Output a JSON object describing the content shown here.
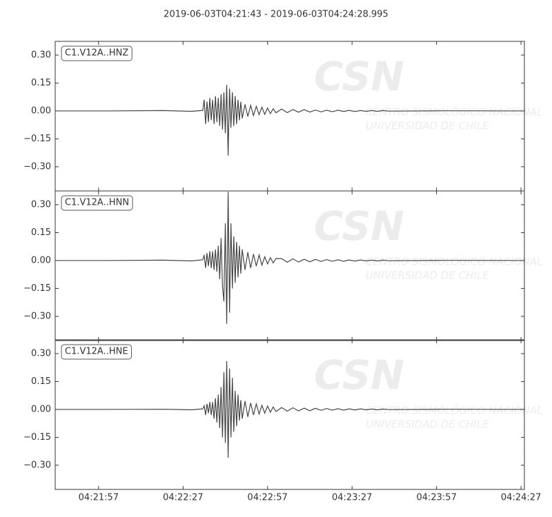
{
  "chart_data": {
    "type": "line",
    "title": "2019-06-03T04:21:43  -  2019-06-03T04:24:28.995",
    "watermark": {
      "logo": "CSN",
      "line1": "CENTRO SISMOLÓGICO NACIONAL",
      "line2": "UNIVERSIDAD DE CHILE"
    },
    "x": [
      "04:21:42",
      "04:22:00",
      "04:22:20",
      "04:22:30",
      "04:22:34",
      "04:22:34.5",
      "04:22:35",
      "04:22:35.5",
      "04:22:36",
      "04:22:36.5",
      "04:22:37",
      "04:22:37.5",
      "04:22:38",
      "04:22:38.5",
      "04:22:39",
      "04:22:39.5",
      "04:22:40",
      "04:22:40.5",
      "04:22:41",
      "04:22:41.5",
      "04:22:42",
      "04:22:42.5",
      "04:22:43",
      "04:22:43.5",
      "04:22:44",
      "04:22:44.5",
      "04:22:45",
      "04:22:45.5",
      "04:22:46",
      "04:22:46.5",
      "04:22:47",
      "04:22:47.5",
      "04:22:48",
      "04:22:49",
      "04:22:50",
      "04:22:51",
      "04:22:52",
      "04:22:53",
      "04:22:54",
      "04:22:55",
      "04:22:56",
      "04:22:57",
      "04:22:58",
      "04:22:59",
      "04:23:00",
      "04:23:02",
      "04:23:04",
      "04:23:06",
      "04:23:08",
      "04:23:10",
      "04:23:12",
      "04:23:14",
      "04:23:16",
      "04:23:18",
      "04:23:20",
      "04:23:22",
      "04:23:24",
      "04:23:26",
      "04:23:28",
      "04:23:30",
      "04:23:32",
      "04:23:34",
      "04:23:36",
      "04:23:38",
      "04:23:40",
      "04:24:00",
      "04:24:28"
    ],
    "xlim": [
      "04:21:41.6",
      "04:24:28.2"
    ],
    "xticks": [
      "04:21:57",
      "04:22:27",
      "04:22:57",
      "04:23:27",
      "04:23:57",
      "04:24:27"
    ],
    "ylim": [
      -0.43,
      0.374
    ],
    "yticks": [
      {
        "value": 0.3,
        "label": "0.30"
      },
      {
        "value": 0.15,
        "label": "0.15"
      },
      {
        "value": 0,
        "label": "0.00"
      },
      {
        "value": -0.15,
        "label": "−0.15"
      },
      {
        "value": -0.3,
        "label": "−0.30"
      }
    ],
    "series": [
      {
        "name": "C1.V12A..HNZ",
        "color": "#444444",
        "values": [
          0,
          0,
          0.002,
          -0.002,
          0.003,
          0.06,
          -0.07,
          0.05,
          -0.06,
          0.07,
          -0.05,
          0.06,
          -0.07,
          0.08,
          -0.06,
          0.07,
          -0.08,
          0.09,
          -0.1,
          0.1,
          -0.12,
          0.14,
          -0.24,
          0.12,
          -0.09,
          0.1,
          -0.08,
          0.08,
          -0.07,
          0.06,
          -0.05,
          0.05,
          -0.04,
          0.035,
          -0.03,
          0.03,
          -0.025,
          0.025,
          -0.02,
          0.02,
          -0.018,
          0.016,
          -0.014,
          0.012,
          -0.01,
          0.01,
          -0.009,
          0.008,
          -0.007,
          0.007,
          -0.006,
          0.005,
          -0.005,
          0.004,
          -0.004,
          0.004,
          -0.003,
          0.003,
          -0.003,
          0.002,
          -0.002,
          0.002,
          -0.002,
          0.002,
          -0.001,
          0.001,
          0
        ]
      },
      {
        "name": "C1.V12A..HNN",
        "color": "#444444",
        "values": [
          0,
          0,
          0.002,
          -0.002,
          0.004,
          0.03,
          -0.04,
          0.04,
          -0.03,
          0.05,
          -0.04,
          0.05,
          -0.05,
          0.06,
          -0.06,
          0.08,
          -0.1,
          0.12,
          -0.14,
          -0.22,
          0.2,
          -0.34,
          0.37,
          -0.28,
          0.2,
          -0.15,
          0.13,
          -0.12,
          0.1,
          -0.09,
          0.08,
          -0.07,
          0.06,
          -0.05,
          0.045,
          -0.04,
          0.035,
          -0.03,
          0.03,
          -0.025,
          0.02,
          -0.018,
          0.015,
          -0.013,
          0.011,
          0.01,
          -0.009,
          0.009,
          -0.008,
          0.007,
          -0.007,
          0.006,
          -0.005,
          0.005,
          -0.004,
          0.004,
          -0.004,
          0.003,
          -0.003,
          0.003,
          -0.002,
          0.002,
          -0.002,
          0.002,
          -0.001,
          0.001,
          0
        ]
      },
      {
        "name": "C1.V12A..HNE",
        "color": "#444444",
        "values": [
          0,
          0,
          0.001,
          -0.002,
          0.003,
          0.02,
          -0.03,
          0.03,
          -0.02,
          0.04,
          -0.03,
          0.04,
          -0.05,
          0.06,
          -0.07,
          0.08,
          -0.1,
          0.12,
          -0.15,
          0.2,
          -0.18,
          0.26,
          -0.26,
          0.22,
          -0.15,
          0.17,
          -0.12,
          0.1,
          -0.09,
          0.08,
          -0.06,
          0.05,
          -0.05,
          0.045,
          -0.04,
          0.035,
          -0.03,
          0.03,
          -0.025,
          0.022,
          -0.02,
          0.018,
          -0.015,
          0.013,
          -0.011,
          0.01,
          -0.009,
          0.009,
          -0.008,
          0.007,
          -0.007,
          0.006,
          -0.005,
          0.005,
          -0.004,
          0.004,
          -0.004,
          0.003,
          -0.003,
          0.003,
          -0.002,
          0.002,
          -0.002,
          0.002,
          -0.001,
          0.001,
          0
        ]
      }
    ]
  }
}
